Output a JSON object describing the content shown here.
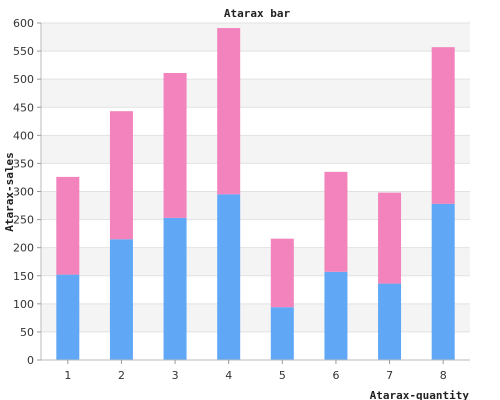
{
  "chart_data": {
    "type": "bar",
    "stacked": true,
    "title": "Atarax bar",
    "xlabel": "Atarax-quantity",
    "ylabel": "Atarax-sales",
    "categories": [
      "1",
      "2",
      "3",
      "4",
      "5",
      "6",
      "7",
      "8"
    ],
    "series": [
      {
        "values": [
          152,
          215,
          253,
          295,
          94,
          157,
          136,
          278
        ],
        "color": "#60a8f6"
      },
      {
        "values": [
          174,
          228,
          258,
          296,
          122,
          178,
          162,
          279
        ],
        "color": "#f283bc"
      }
    ],
    "ylim": [
      0,
      600
    ],
    "yticks": [
      0,
      50,
      100,
      150,
      200,
      250,
      300,
      350,
      400,
      450,
      500,
      550,
      600
    ],
    "grid": true,
    "grid_band_colors": [
      "#ffffff",
      "#f4f4f4"
    ],
    "legend": "none"
  }
}
